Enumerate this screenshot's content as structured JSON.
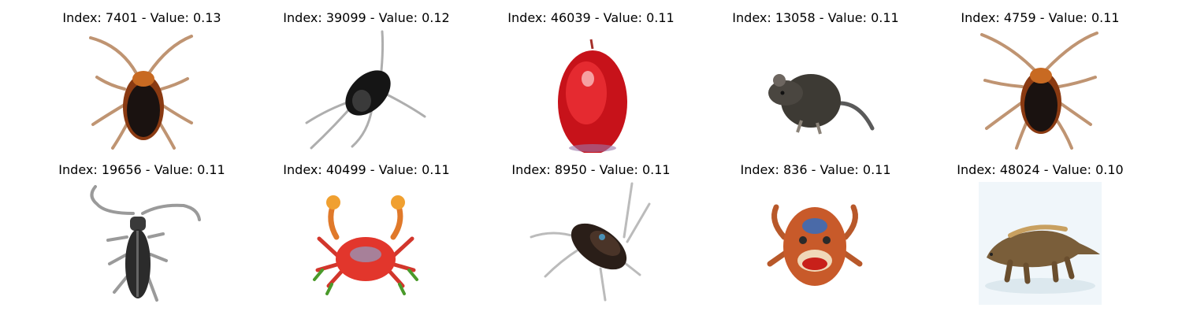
{
  "panels": [
    {
      "caption": "Index: 7401 - Value: 0.13",
      "subject": "cockroach"
    },
    {
      "caption": "Index: 39099 - Value: 0.12",
      "subject": "cockroach"
    },
    {
      "caption": "Index: 46039 - Value: 0.11",
      "subject": "apple"
    },
    {
      "caption": "Index: 13058 - Value: 0.11",
      "subject": "mouse"
    },
    {
      "caption": "Index: 4759 - Value: 0.11",
      "subject": "cockroach"
    },
    {
      "caption": "Index: 19656 - Value: 0.11",
      "subject": "beetle"
    },
    {
      "caption": "Index: 40499 - Value: 0.11",
      "subject": "crab"
    },
    {
      "caption": "Index: 8950 - Value: 0.11",
      "subject": "cockroach"
    },
    {
      "caption": "Index: 836 - Value: 0.11",
      "subject": "crab"
    },
    {
      "caption": "Index: 48024 - Value: 0.10",
      "subject": "dinosaur"
    }
  ]
}
